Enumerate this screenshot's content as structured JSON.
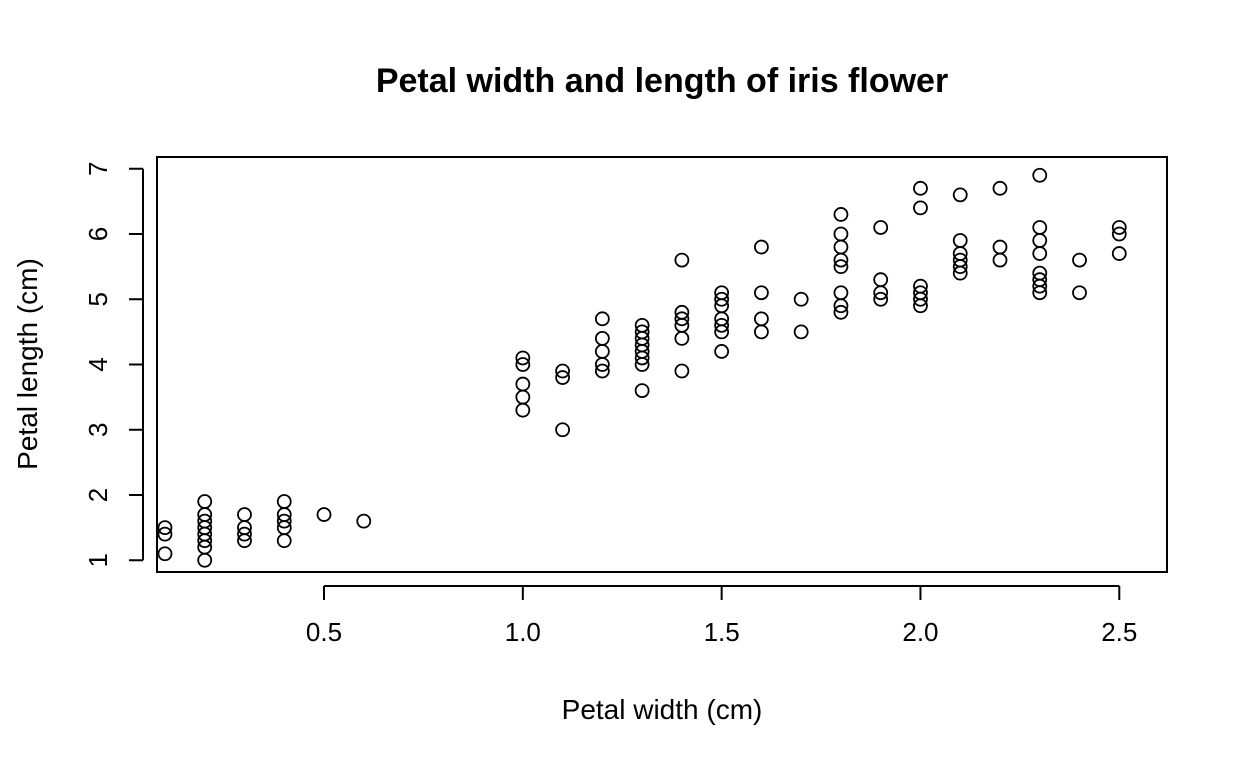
{
  "chart_data": {
    "type": "scatter",
    "title": "Petal width and length of iris flower",
    "xlabel": "Petal width (cm)",
    "ylabel": "Petal length (cm)",
    "xlim": [
      0.08,
      2.62
    ],
    "ylim": [
      0.82,
      7.18
    ],
    "xticks": [
      0.5,
      1.0,
      1.5,
      2.0,
      2.5
    ],
    "xtick_labels": [
      "0.5",
      "1.0",
      "1.5",
      "2.0",
      "2.5"
    ],
    "yticks": [
      1,
      2,
      3,
      4,
      5,
      6,
      7
    ],
    "ytick_labels": [
      "1",
      "2",
      "3",
      "4",
      "5",
      "6",
      "7"
    ],
    "grid": false,
    "marker": "open-circle",
    "color": "#000000",
    "points": [
      [
        0.1,
        1.1
      ],
      [
        0.1,
        1.4
      ],
      [
        0.1,
        1.5
      ],
      [
        0.2,
        1.0
      ],
      [
        0.2,
        1.2
      ],
      [
        0.2,
        1.3
      ],
      [
        0.2,
        1.4
      ],
      [
        0.2,
        1.5
      ],
      [
        0.2,
        1.6
      ],
      [
        0.2,
        1.7
      ],
      [
        0.2,
        1.9
      ],
      [
        0.3,
        1.3
      ],
      [
        0.3,
        1.4
      ],
      [
        0.3,
        1.5
      ],
      [
        0.3,
        1.7
      ],
      [
        0.4,
        1.3
      ],
      [
        0.4,
        1.5
      ],
      [
        0.4,
        1.6
      ],
      [
        0.4,
        1.7
      ],
      [
        0.4,
        1.9
      ],
      [
        0.5,
        1.7
      ],
      [
        0.6,
        1.6
      ],
      [
        1.0,
        3.3
      ],
      [
        1.0,
        3.5
      ],
      [
        1.0,
        3.7
      ],
      [
        1.0,
        4.0
      ],
      [
        1.0,
        4.1
      ],
      [
        1.1,
        3.0
      ],
      [
        1.1,
        3.8
      ],
      [
        1.1,
        3.9
      ],
      [
        1.2,
        3.9
      ],
      [
        1.2,
        4.0
      ],
      [
        1.2,
        4.2
      ],
      [
        1.2,
        4.4
      ],
      [
        1.2,
        4.7
      ],
      [
        1.3,
        3.6
      ],
      [
        1.3,
        4.0
      ],
      [
        1.3,
        4.1
      ],
      [
        1.3,
        4.2
      ],
      [
        1.3,
        4.3
      ],
      [
        1.3,
        4.4
      ],
      [
        1.3,
        4.5
      ],
      [
        1.3,
        4.6
      ],
      [
        1.4,
        3.9
      ],
      [
        1.4,
        4.4
      ],
      [
        1.4,
        4.6
      ],
      [
        1.4,
        4.7
      ],
      [
        1.4,
        4.8
      ],
      [
        1.4,
        5.6
      ],
      [
        1.5,
        4.2
      ],
      [
        1.5,
        4.5
      ],
      [
        1.5,
        4.6
      ],
      [
        1.5,
        4.7
      ],
      [
        1.5,
        4.9
      ],
      [
        1.5,
        5.0
      ],
      [
        1.5,
        5.1
      ],
      [
        1.6,
        4.5
      ],
      [
        1.6,
        4.7
      ],
      [
        1.6,
        5.1
      ],
      [
        1.6,
        5.8
      ],
      [
        1.7,
        4.5
      ],
      [
        1.7,
        5.0
      ],
      [
        1.8,
        4.8
      ],
      [
        1.8,
        4.9
      ],
      [
        1.8,
        5.1
      ],
      [
        1.8,
        5.5
      ],
      [
        1.8,
        5.6
      ],
      [
        1.8,
        5.8
      ],
      [
        1.8,
        6.0
      ],
      [
        1.8,
        6.3
      ],
      [
        1.9,
        5.0
      ],
      [
        1.9,
        5.1
      ],
      [
        1.9,
        5.3
      ],
      [
        1.9,
        6.1
      ],
      [
        2.0,
        4.9
      ],
      [
        2.0,
        5.0
      ],
      [
        2.0,
        5.1
      ],
      [
        2.0,
        5.2
      ],
      [
        2.0,
        6.4
      ],
      [
        2.0,
        6.7
      ],
      [
        2.1,
        5.4
      ],
      [
        2.1,
        5.5
      ],
      [
        2.1,
        5.6
      ],
      [
        2.1,
        5.7
      ],
      [
        2.1,
        5.9
      ],
      [
        2.1,
        6.6
      ],
      [
        2.2,
        5.6
      ],
      [
        2.2,
        5.8
      ],
      [
        2.2,
        6.7
      ],
      [
        2.3,
        5.1
      ],
      [
        2.3,
        5.2
      ],
      [
        2.3,
        5.3
      ],
      [
        2.3,
        5.4
      ],
      [
        2.3,
        5.7
      ],
      [
        2.3,
        5.9
      ],
      [
        2.3,
        6.1
      ],
      [
        2.3,
        6.9
      ],
      [
        2.4,
        5.1
      ],
      [
        2.4,
        5.6
      ],
      [
        2.5,
        5.7
      ],
      [
        2.5,
        6.0
      ],
      [
        2.5,
        6.1
      ]
    ]
  }
}
